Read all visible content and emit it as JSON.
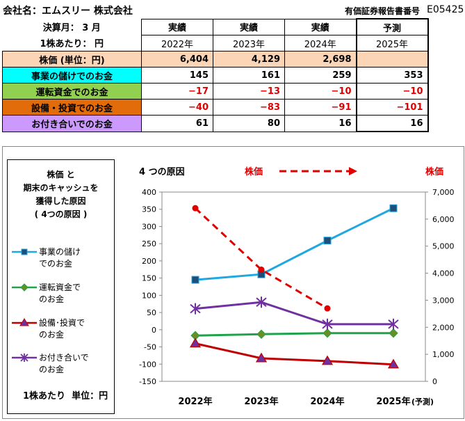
{
  "header": {
    "company": "会社名：エムスリー 株式会社",
    "report_label": "有価証券報告書番号",
    "report_code": "E05425",
    "fiscal_label": "決算月： 3 月",
    "per_share": "1株あたり： 円"
  },
  "table": {
    "columns": [
      {
        "kind": "実績",
        "year": "2022年"
      },
      {
        "kind": "実績",
        "year": "2023年"
      },
      {
        "kind": "実績",
        "year": "2024年"
      },
      {
        "kind": "予測",
        "year": "2025年"
      }
    ],
    "rows": [
      {
        "label": "株価 (単位：円)",
        "color": "#fbd5b5",
        "values": [
          "6,404",
          "4,129",
          "2,698",
          ""
        ]
      },
      {
        "label": "事業の儲けでのお金",
        "color": "#00ffff",
        "values": [
          "145",
          "161",
          "259",
          "353"
        ]
      },
      {
        "label": "運転資金でのお金",
        "color": "#92d050",
        "values": [
          "−17",
          "−13",
          "−10",
          "−10"
        ]
      },
      {
        "label": "設備・投資でのお金",
        "color": "#e26b0a",
        "values": [
          "−40",
          "−83",
          "−91",
          "−101"
        ]
      },
      {
        "label": "お付き合いでのお金",
        "color": "#cc99ff",
        "values": [
          "61",
          "80",
          "16",
          "16"
        ]
      }
    ]
  },
  "legend": {
    "title": [
      "株価 と",
      "期末のキャッシュを",
      "獲得した原因",
      "( 4つの原因 )"
    ],
    "items": [
      {
        "label": [
          "事業の儲け",
          "でのお金"
        ],
        "color": "#1fa7e0",
        "marker": "square"
      },
      {
        "label": [
          "運転資金で",
          "のお金"
        ],
        "color": "#1fa34a",
        "marker": "diamond"
      },
      {
        "label": [
          "設備･投資で",
          "のお金"
        ],
        "color": "#c00000",
        "marker": "triangle"
      },
      {
        "label": [
          "お付き合いで",
          "のお金"
        ],
        "color": "#7030a0",
        "marker": "star"
      }
    ],
    "unit_note": "1株あたり  単位：円"
  },
  "chart_data": {
    "type": "line",
    "subtitle": "4 つの原因",
    "price_label": "株価",
    "right_axis_title": "株価",
    "categories": [
      "2022年",
      "2023年",
      "2024年",
      "2025年"
    ],
    "category_suffix": "(予測)",
    "ylim": [
      -150,
      400
    ],
    "yticks": [
      -150,
      -100,
      -50,
      0,
      50,
      100,
      150,
      200,
      250,
      300,
      350,
      400
    ],
    "y2lim": [
      0,
      7000
    ],
    "y2ticks": [
      "0",
      "1,000",
      "2,000",
      "3,000",
      "4,000",
      "5,000",
      "6,000",
      "7,000"
    ],
    "series": [
      {
        "name": "事業の儲けでのお金",
        "axis": "left",
        "color": "#1fa7e0",
        "marker": "square",
        "values": [
          145,
          161,
          259,
          353
        ]
      },
      {
        "name": "運転資金でのお金",
        "axis": "left",
        "color": "#1fa34a",
        "marker": "diamond",
        "values": [
          -17,
          -13,
          -10,
          -10
        ]
      },
      {
        "name": "設備･投資でのお金",
        "axis": "left",
        "color": "#c00000",
        "marker": "triangle",
        "values": [
          -40,
          -83,
          -91,
          -101
        ]
      },
      {
        "name": "お付き合いでのお金",
        "axis": "left",
        "color": "#7030a0",
        "marker": "star",
        "values": [
          61,
          80,
          16,
          16
        ]
      },
      {
        "name": "株価",
        "axis": "right",
        "color": "#e00000",
        "marker": "circle",
        "dashed": true,
        "values": [
          6404,
          4129,
          2698,
          null
        ]
      }
    ]
  }
}
